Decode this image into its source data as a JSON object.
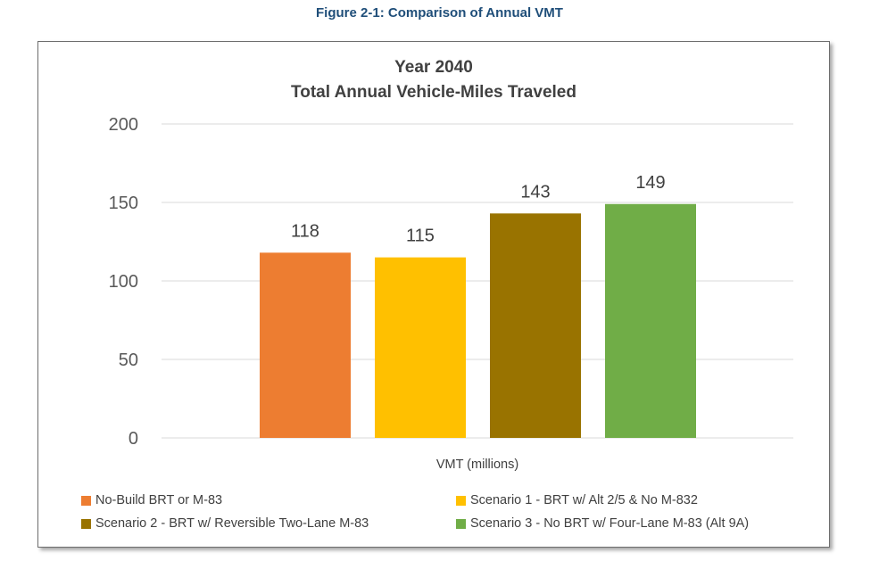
{
  "figure_caption": "Figure 2-1: Comparison of Annual VMT",
  "chart_data": {
    "type": "bar",
    "title": "Year 2040",
    "subtitle": "Total Annual Vehicle-Miles Traveled",
    "xlabel": "VMT (millions)",
    "ylabel": "",
    "ylim": [
      0,
      200
    ],
    "yticks": [
      "0",
      "50",
      "100",
      "150",
      "200"
    ],
    "grid": true,
    "legend_position": "bottom",
    "series": [
      {
        "name": "No-Build BRT or M-83",
        "value": 118,
        "color": "#ED7D31"
      },
      {
        "name": "Scenario 1 - BRT w/ Alt 2/5 & No M-832",
        "value": 115,
        "color": "#FFC000"
      },
      {
        "name": "Scenario 2 - BRT w/ Reversible Two-Lane M-83",
        "value": 143,
        "color": "#997300"
      },
      {
        "name": "Scenario 3 - No BRT w/ Four-Lane M-83 (Alt 9A)",
        "value": 149,
        "color": "#70AD47"
      }
    ]
  }
}
